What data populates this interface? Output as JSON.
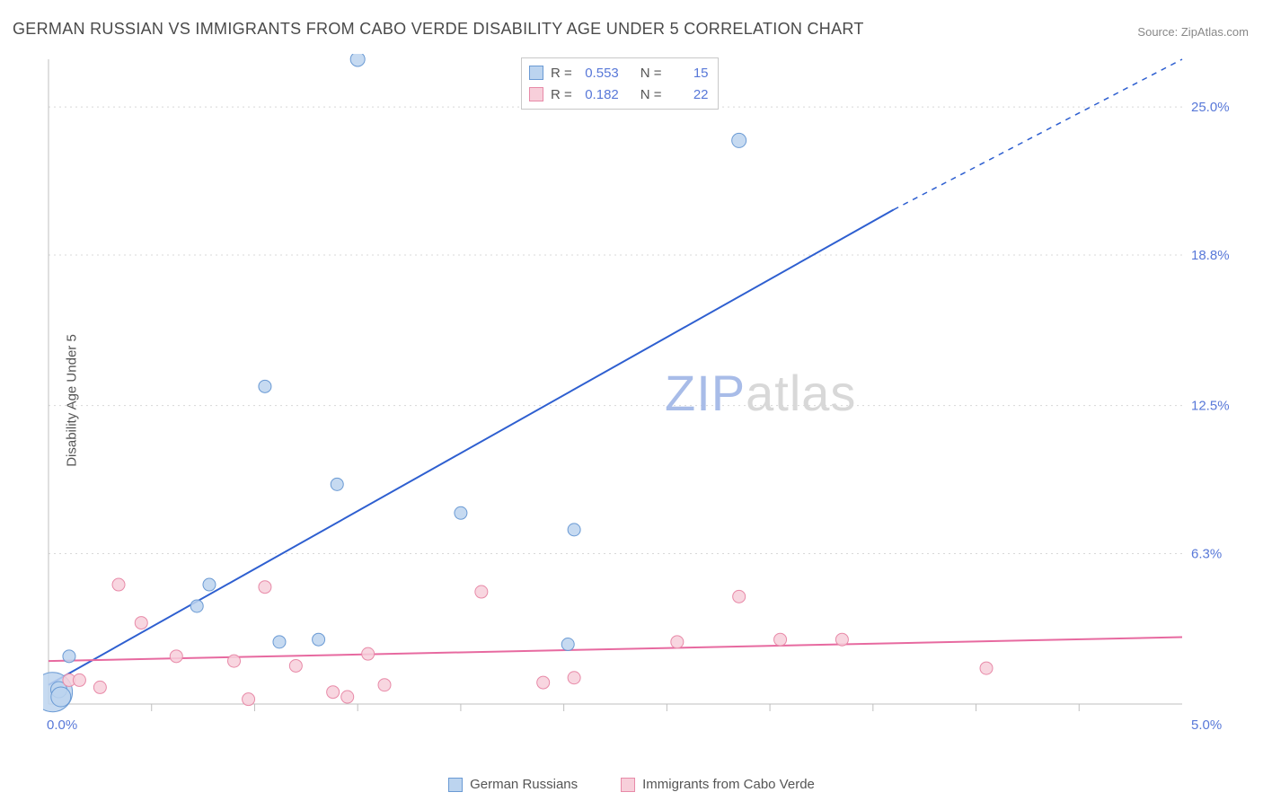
{
  "title": "GERMAN RUSSIAN VS IMMIGRANTS FROM CABO VERDE DISABILITY AGE UNDER 5 CORRELATION CHART",
  "source_label": "Source:",
  "source_value": "ZipAtlas.com",
  "ylabel": "Disability Age Under 5",
  "watermark": {
    "left": "ZIP",
    "right": "atlas"
  },
  "chart": {
    "type": "scatter",
    "background_color": "#ffffff",
    "axis_color": "#bfbfbf",
    "grid_color": "#d8d8d8",
    "tick_label_color": "#5878d8",
    "xlim": [
      0.0,
      5.5
    ],
    "ylim": [
      0.0,
      27.0
    ],
    "y_ticks": [
      {
        "value": 6.3,
        "label": "6.3%"
      },
      {
        "value": 12.5,
        "label": "12.5%"
      },
      {
        "value": 18.8,
        "label": "18.8%"
      },
      {
        "value": 25.0,
        "label": "25.0%"
      }
    ],
    "x_origin_label": "0.0%",
    "x_end_label": "5.0%",
    "x_tick_positions": [
      0.5,
      1.0,
      1.5,
      2.0,
      2.5,
      3.0,
      3.5,
      4.0,
      4.5,
      5.0
    ],
    "series": [
      {
        "name": "German Russians",
        "marker_fill": "#bcd4ef",
        "marker_stroke": "#6a9ad4",
        "trend_color": "#2e5fd0",
        "trend": {
          "x1": 0.0,
          "y1": 0.8,
          "x2_solid": 4.1,
          "y2_solid": 20.7,
          "x2_dash": 5.5,
          "y2_dash": 27.0
        },
        "R": "0.553",
        "N": "15",
        "points": [
          {
            "x": 0.02,
            "y": 0.5,
            "r": 22
          },
          {
            "x": 0.1,
            "y": 2.0,
            "r": 7
          },
          {
            "x": 0.72,
            "y": 4.1,
            "r": 7
          },
          {
            "x": 0.78,
            "y": 5.0,
            "r": 7
          },
          {
            "x": 1.12,
            "y": 2.6,
            "r": 7
          },
          {
            "x": 1.31,
            "y": 2.7,
            "r": 7
          },
          {
            "x": 1.4,
            "y": 9.2,
            "r": 7
          },
          {
            "x": 1.5,
            "y": 27.0,
            "r": 8
          },
          {
            "x": 1.05,
            "y": 13.3,
            "r": 7
          },
          {
            "x": 2.0,
            "y": 8.0,
            "r": 7
          },
          {
            "x": 2.52,
            "y": 2.5,
            "r": 7
          },
          {
            "x": 2.55,
            "y": 7.3,
            "r": 7
          },
          {
            "x": 3.35,
            "y": 23.6,
            "r": 8
          },
          {
            "x": 0.05,
            "y": 0.6,
            "r": 9
          },
          {
            "x": 0.06,
            "y": 0.3,
            "r": 11
          }
        ]
      },
      {
        "name": "Immigrants from Cabo Verde",
        "marker_fill": "#f7cfda",
        "marker_stroke": "#e88aa8",
        "trend_color": "#e76aa0",
        "trend": {
          "x1": 0.0,
          "y1": 1.8,
          "x2_solid": 5.5,
          "y2_solid": 2.8,
          "x2_dash": 5.5,
          "y2_dash": 2.8
        },
        "R": "0.182",
        "N": "22",
        "points": [
          {
            "x": 0.1,
            "y": 1.0,
            "r": 7
          },
          {
            "x": 0.15,
            "y": 1.0,
            "r": 7
          },
          {
            "x": 0.25,
            "y": 0.7,
            "r": 7
          },
          {
            "x": 0.34,
            "y": 5.0,
            "r": 7
          },
          {
            "x": 0.45,
            "y": 3.4,
            "r": 7
          },
          {
            "x": 0.62,
            "y": 2.0,
            "r": 7
          },
          {
            "x": 0.9,
            "y": 1.8,
            "r": 7
          },
          {
            "x": 0.97,
            "y": 0.2,
            "r": 7
          },
          {
            "x": 1.05,
            "y": 4.9,
            "r": 7
          },
          {
            "x": 1.2,
            "y": 1.6,
            "r": 7
          },
          {
            "x": 1.38,
            "y": 0.5,
            "r": 7
          },
          {
            "x": 1.45,
            "y": 0.3,
            "r": 7
          },
          {
            "x": 1.55,
            "y": 2.1,
            "r": 7
          },
          {
            "x": 1.63,
            "y": 0.8,
            "r": 7
          },
          {
            "x": 2.1,
            "y": 4.7,
            "r": 7
          },
          {
            "x": 2.4,
            "y": 0.9,
            "r": 7
          },
          {
            "x": 2.55,
            "y": 1.1,
            "r": 7
          },
          {
            "x": 3.05,
            "y": 2.6,
            "r": 7
          },
          {
            "x": 3.35,
            "y": 4.5,
            "r": 7
          },
          {
            "x": 3.55,
            "y": 2.7,
            "r": 7
          },
          {
            "x": 3.85,
            "y": 2.7,
            "r": 7
          },
          {
            "x": 4.55,
            "y": 1.5,
            "r": 7
          }
        ]
      }
    ]
  },
  "legend_stats_label_R": "R =",
  "legend_stats_label_N": "N =",
  "bottom_legend": [
    {
      "label": "German Russians",
      "fill": "#bcd4ef",
      "stroke": "#6a9ad4"
    },
    {
      "label": "Immigrants from Cabo Verde",
      "fill": "#f7cfda",
      "stroke": "#e88aa8"
    }
  ]
}
